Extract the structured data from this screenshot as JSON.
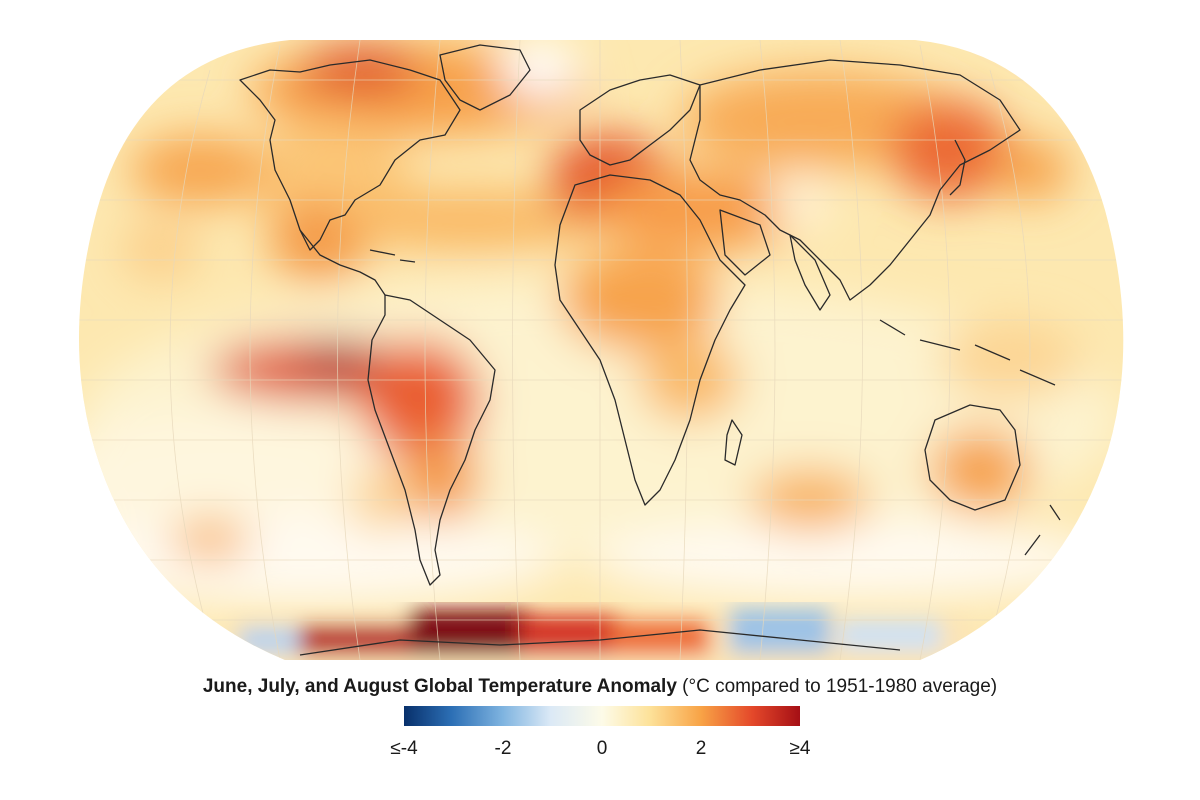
{
  "map": {
    "title": "June, July, and August Global Temperature Anomaly",
    "units": "(°C compared to 1951-1980 average)",
    "projection": "Robinson-style world map, Pacific-centered left",
    "colors": {
      "cold_extreme": "#08306b",
      "cold": "#7fb4e0",
      "neutral": "#fdfbe8",
      "warm": "#f8a346",
      "hot": "#e4482a",
      "hot_extreme": "#a50f15"
    }
  },
  "legend": {
    "ticks": [
      "≤-4",
      "-2",
      "0",
      "2",
      "≥4"
    ]
  }
}
